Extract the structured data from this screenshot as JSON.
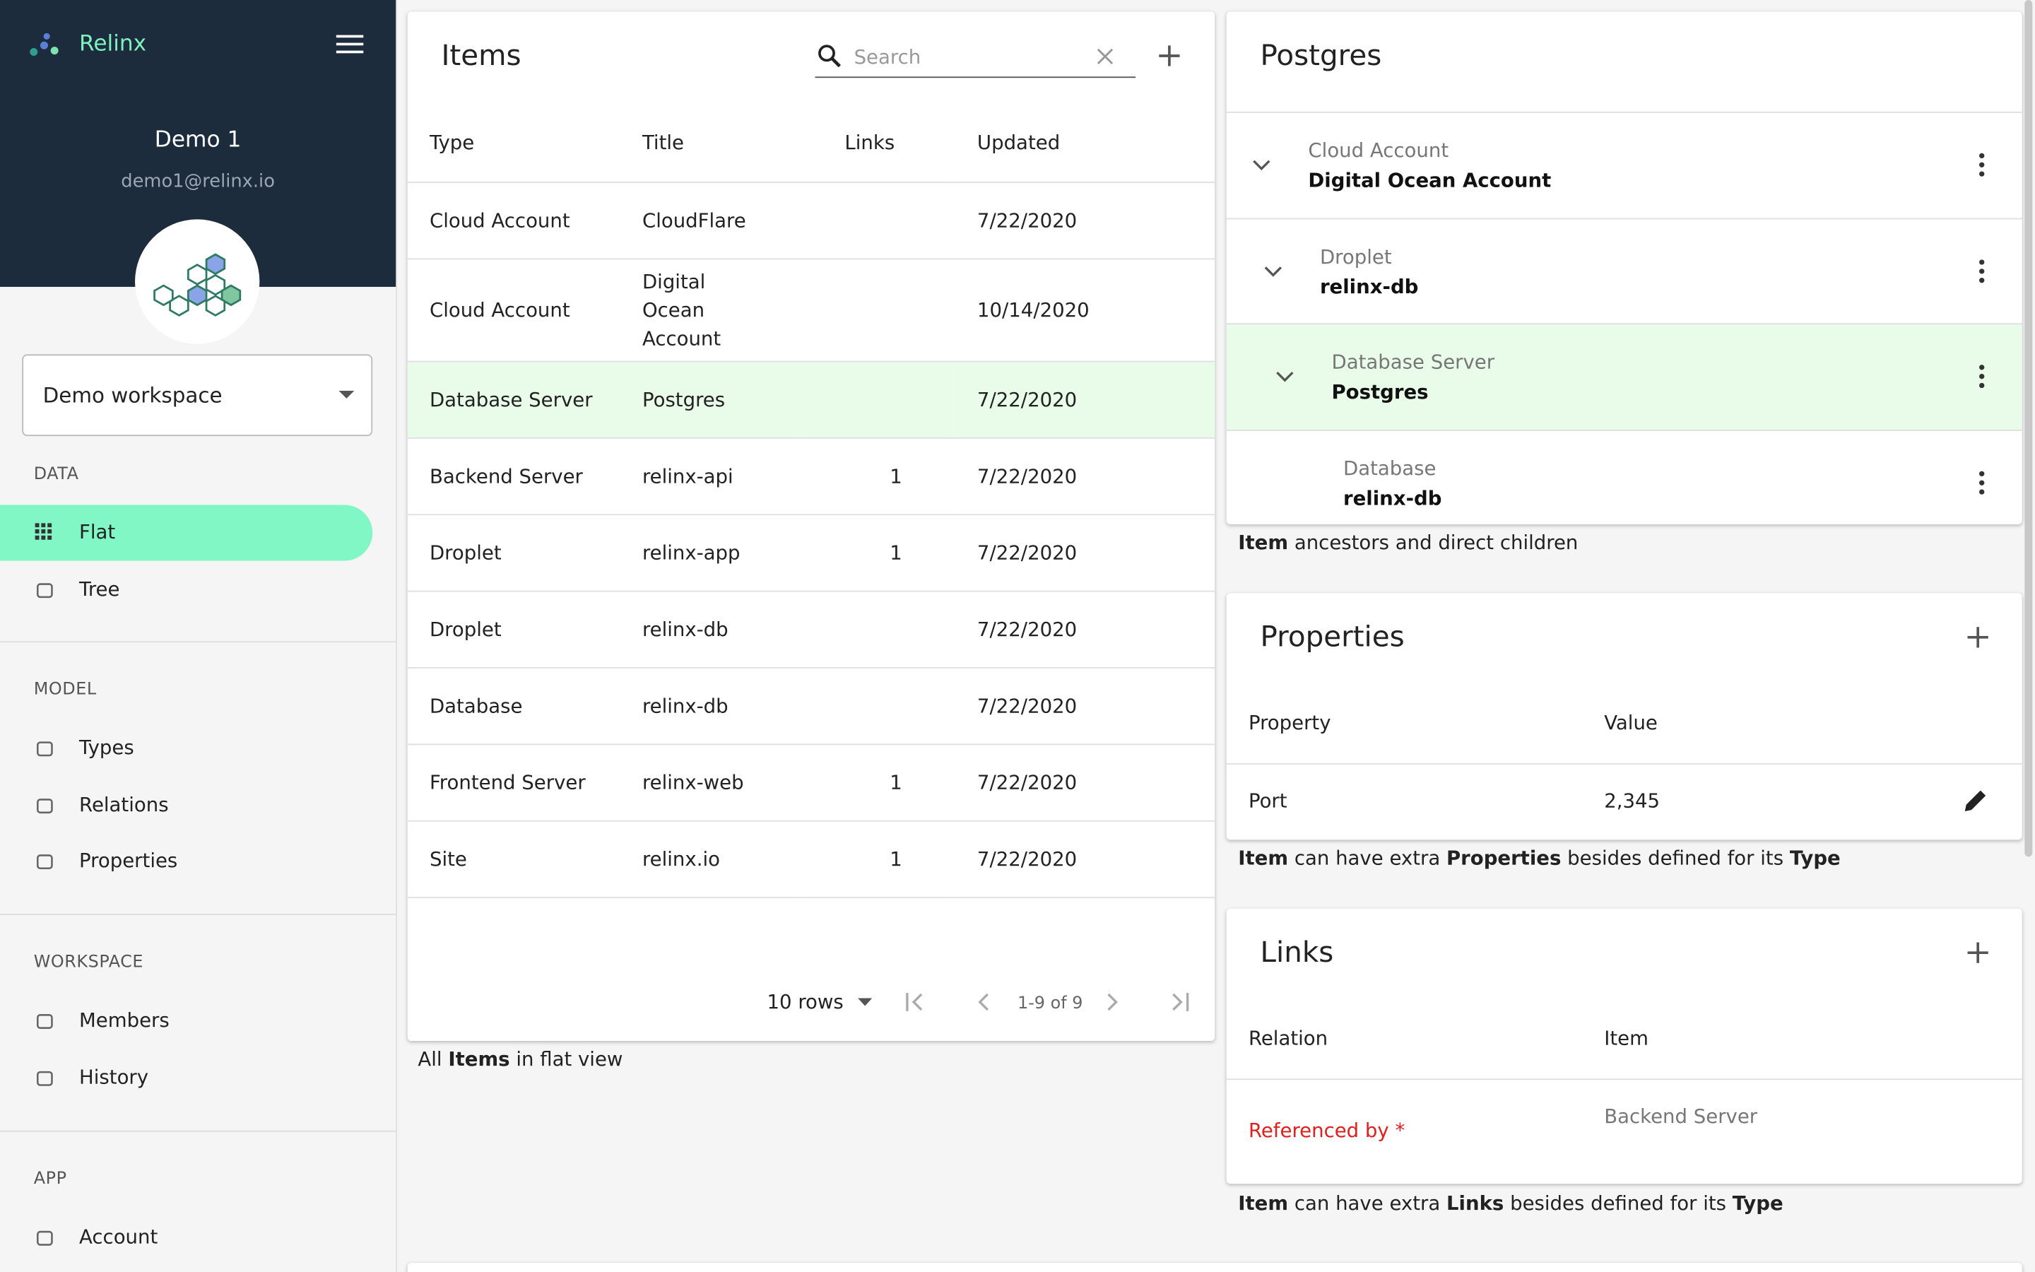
{
  "app": {
    "name": "Relinx"
  },
  "user": {
    "name": "Demo 1",
    "email": "demo1@relinx.io"
  },
  "workspace_select": "Demo workspace",
  "nav": [
    {
      "section": "DATA",
      "items": [
        "Flat",
        "Tree"
      ]
    },
    {
      "section": "MODEL",
      "items": [
        "Types",
        "Relations",
        "Properties"
      ]
    },
    {
      "section": "WORKSPACE",
      "items": [
        "Members",
        "History"
      ]
    },
    {
      "section": "APP",
      "items": [
        "Account"
      ]
    }
  ],
  "items_panel": {
    "title": "Items",
    "search_placeholder": "Search",
    "columns": [
      "Type",
      "Title",
      "Links",
      "Updated"
    ],
    "rows": [
      [
        "Cloud Account",
        "CloudFlare",
        null,
        "7/22/2020"
      ],
      [
        "Cloud Account",
        "Digital Ocean Account",
        null,
        "10/14/2020"
      ],
      [
        "Database Server",
        "Postgres",
        null,
        "7/22/2020"
      ],
      [
        "Backend Server",
        "relinx-api",
        1,
        "7/22/2020"
      ],
      [
        "Droplet",
        "relinx-app",
        1,
        "7/22/2020"
      ],
      [
        "Droplet",
        "relinx-db",
        null,
        "7/22/2020"
      ],
      [
        "Database",
        "relinx-db",
        null,
        "7/22/2020"
      ],
      [
        "Frontend Server",
        "relinx-web",
        1,
        "7/22/2020"
      ],
      [
        "Site",
        "relinx.io",
        1,
        "7/22/2020"
      ]
    ],
    "rows_per_page": "10 rows",
    "pagination": "1-9 of 9",
    "caption": [
      "All ",
      "Items",
      " in flat view"
    ]
  },
  "tree_panel": {
    "title": "Postgres",
    "nodes": [
      {
        "type": "Cloud Account",
        "title": "Digital Ocean Account"
      },
      {
        "type": "Droplet",
        "title": "relinx-db"
      },
      {
        "type": "Database Server",
        "title": "Postgres"
      },
      {
        "type": "Database",
        "title": "relinx-db"
      }
    ],
    "caption": [
      "Item",
      " ancestors and direct children"
    ]
  },
  "properties_panel": {
    "title": "Properties",
    "columns": [
      "Property",
      "Value"
    ],
    "rows": [
      [
        "Port",
        "2,345"
      ]
    ],
    "caption": [
      "Item",
      " can have extra ",
      "Properties",
      " besides defined for its ",
      "Type"
    ]
  },
  "links_panel": {
    "title": "Links",
    "columns": [
      "Relation",
      "Item"
    ],
    "rows": [
      [
        "Referenced by *",
        "Backend Server"
      ]
    ],
    "caption": [
      "Item",
      " can have extra ",
      "Links",
      " besides defined for its ",
      "Type"
    ]
  }
}
